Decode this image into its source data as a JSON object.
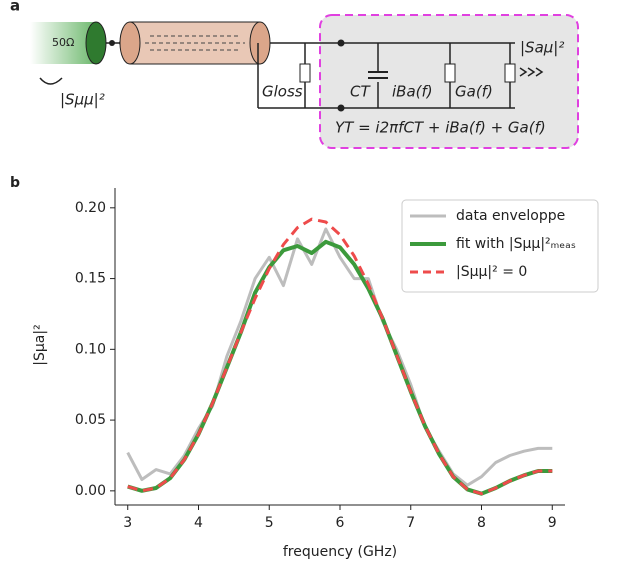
{
  "panel_a": {
    "label": "a",
    "source": "50Ω",
    "s_mumu": "|Sμμ|²",
    "g_loss": "Gloss",
    "c_t": "CT",
    "ib": "iBa(f)",
    "ga": "Ga(f)",
    "s_amu": "|Saμ|²",
    "equation": "YT = i2πfCT + iBa(f) + Ga(f)"
  },
  "chart_data": {
    "type": "line",
    "panel_label": "b",
    "x_label": "frequency (GHz)",
    "y_label": "|Sμa|²",
    "xlim": [
      2.82,
      9.18
    ],
    "ylim": [
      -0.01,
      0.214
    ],
    "xticks": [
      3,
      4,
      5,
      6,
      7,
      8,
      9
    ],
    "yticks": [
      {
        "value": 0,
        "label": "0.00"
      },
      {
        "value": 0.05,
        "label": "0.05"
      },
      {
        "value": 0.1,
        "label": "0.10"
      },
      {
        "value": 0.15,
        "label": "0.15"
      },
      {
        "value": 0.2,
        "label": "0.20"
      }
    ],
    "legend": "upper right",
    "x": [
      3.0,
      3.2,
      3.4,
      3.6,
      3.8,
      4.0,
      4.2,
      4.4,
      4.6,
      4.8,
      5.0,
      5.2,
      5.4,
      5.6,
      5.8,
      6.0,
      6.2,
      6.4,
      6.6,
      6.8,
      7.0,
      7.2,
      7.4,
      7.6,
      7.8,
      8.0,
      8.2,
      8.4,
      8.6,
      8.8,
      9.0
    ],
    "series": [
      {
        "name": "data enveloppe",
        "color": "#bdbdbd",
        "style": "solid",
        "width": 3,
        "values": [
          0.027,
          0.008,
          0.015,
          0.012,
          0.025,
          0.044,
          0.06,
          0.095,
          0.12,
          0.15,
          0.165,
          0.145,
          0.178,
          0.16,
          0.185,
          0.165,
          0.15,
          0.15,
          0.12,
          0.1,
          0.075,
          0.045,
          0.028,
          0.012,
          0.004,
          0.01,
          0.02,
          0.025,
          0.028,
          0.03,
          0.03
        ]
      },
      {
        "name": "fit with |Sμμ|²ₘₑₐₛ",
        "color": "#3c9a3c",
        "style": "solid",
        "width": 4,
        "values": [
          0.003,
          0.0,
          0.002,
          0.009,
          0.022,
          0.04,
          0.062,
          0.087,
          0.112,
          0.14,
          0.158,
          0.17,
          0.173,
          0.168,
          0.176,
          0.172,
          0.16,
          0.143,
          0.122,
          0.096,
          0.07,
          0.046,
          0.026,
          0.01,
          0.001,
          -0.002,
          0.002,
          0.007,
          0.011,
          0.014,
          0.014
        ]
      },
      {
        "name": "|Sμμ|² = 0",
        "color": "#ee4b4b",
        "style": "dashed",
        "width": 3,
        "values": [
          0.003,
          0.0,
          0.002,
          0.009,
          0.022,
          0.04,
          0.062,
          0.087,
          0.112,
          0.136,
          0.157,
          0.174,
          0.186,
          0.192,
          0.19,
          0.181,
          0.166,
          0.146,
          0.122,
          0.096,
          0.07,
          0.046,
          0.026,
          0.01,
          0.001,
          -0.002,
          0.002,
          0.007,
          0.011,
          0.014,
          0.014
        ]
      }
    ]
  }
}
